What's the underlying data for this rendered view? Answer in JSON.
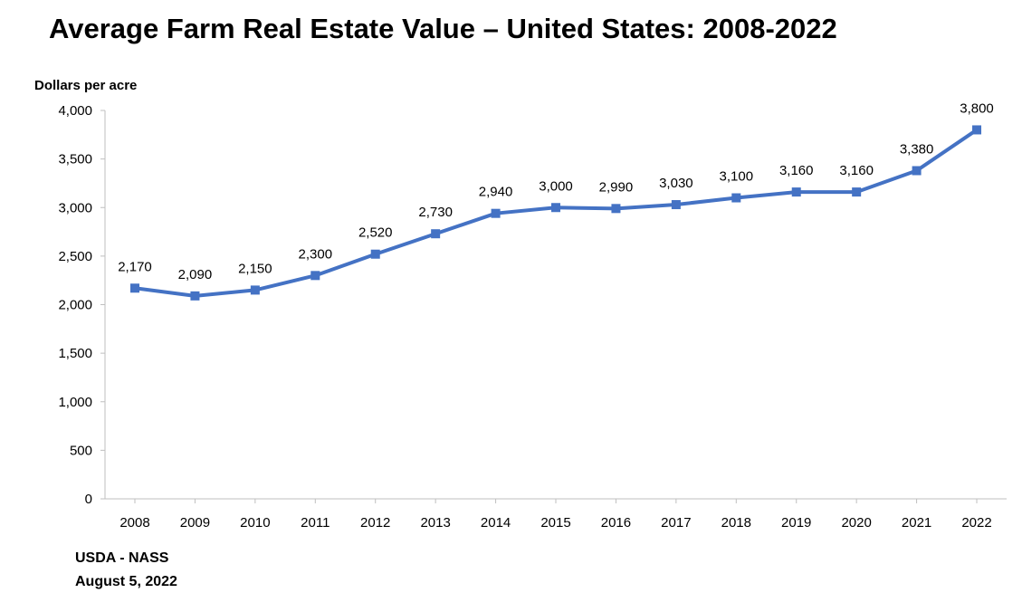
{
  "chart_data": {
    "type": "line",
    "title": "Average Farm Real Estate Value – United States: 2008-2022",
    "ylabel": "Dollars per acre",
    "xlabel": "",
    "categories": [
      "2008",
      "2009",
      "2010",
      "2011",
      "2012",
      "2013",
      "2014",
      "2015",
      "2016",
      "2017",
      "2018",
      "2019",
      "2020",
      "2021",
      "2022"
    ],
    "series": [
      {
        "name": "Average Farm Real Estate Value",
        "values": [
          2170,
          2090,
          2150,
          2300,
          2520,
          2730,
          2940,
          3000,
          2990,
          3030,
          3100,
          3160,
          3160,
          3380,
          3800
        ],
        "labels": [
          "2,170",
          "2,090",
          "2,150",
          "2,300",
          "2,520",
          "2,730",
          "2,940",
          "3,000",
          "2,990",
          "3,030",
          "3,100",
          "3,160",
          "3,160",
          "3,380",
          "3,800"
        ]
      }
    ],
    "yticks": [
      0,
      500,
      1000,
      1500,
      2000,
      2500,
      3000,
      3500,
      4000
    ],
    "ytick_labels": [
      "0",
      "500",
      "1,000",
      "1,500",
      "2,000",
      "2,500",
      "3,000",
      "3,500",
      "4,000"
    ],
    "ylim": [
      0,
      4000
    ],
    "grid": false,
    "line_color": "#4472C4"
  },
  "footer": {
    "source": "USDA - NASS",
    "date": "August 5, 2022"
  }
}
